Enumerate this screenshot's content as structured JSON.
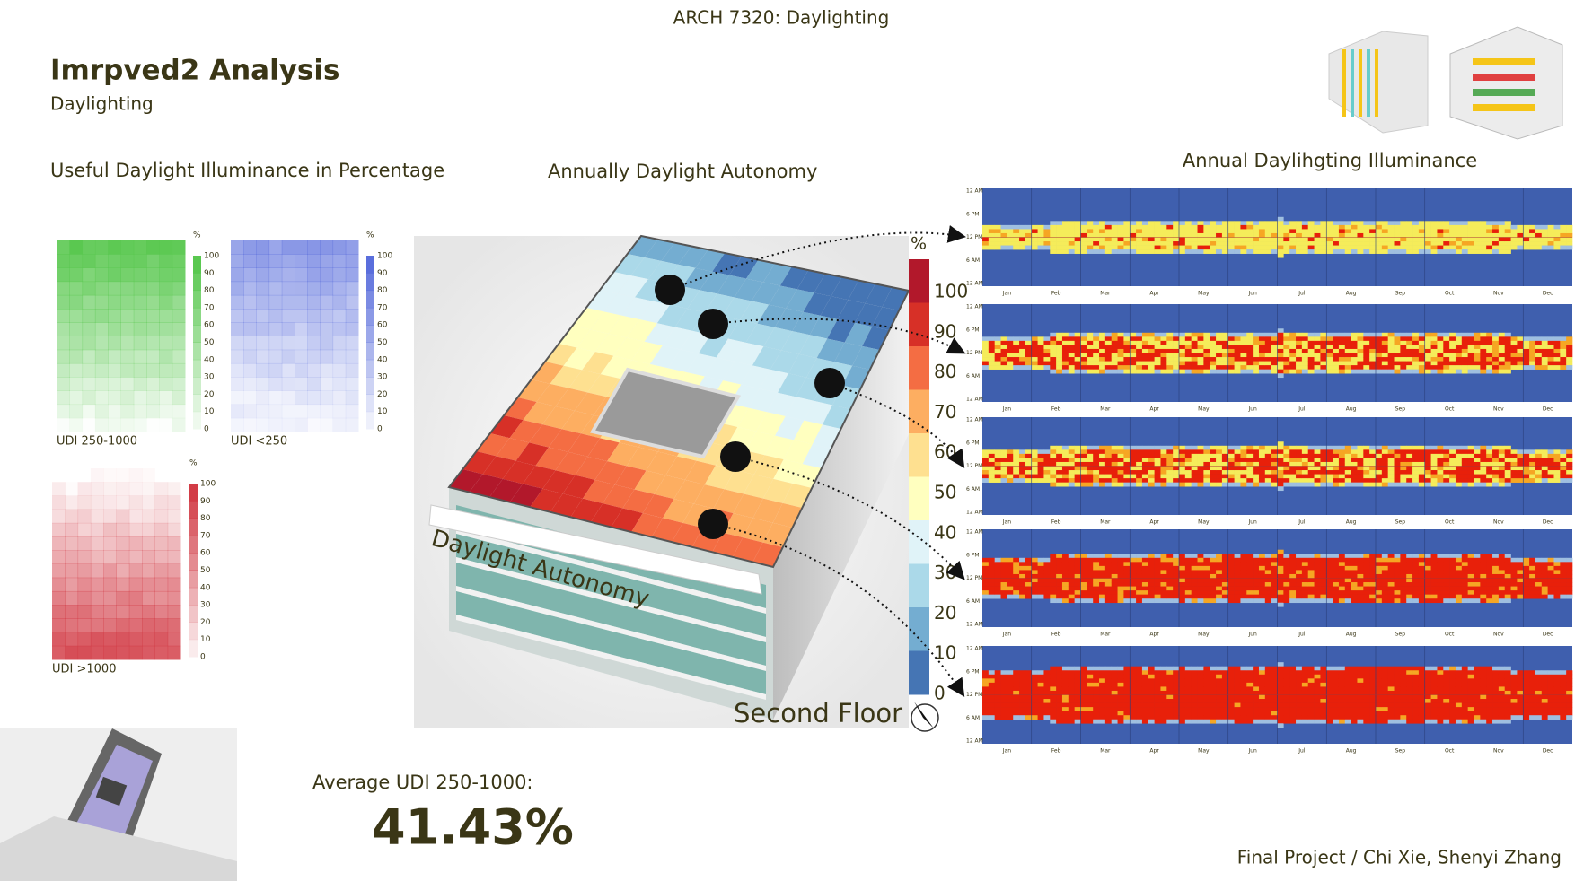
{
  "header": {
    "course": "ARCH 7320: Daylighting",
    "title": "Imrpved2 Analysis",
    "subtitle": "Daylighting"
  },
  "udi": {
    "heading": "Useful Daylight Illuminance in Percentage",
    "unit": "%",
    "ticks": [
      100,
      90,
      80,
      70,
      60,
      50,
      40,
      30,
      20,
      10,
      0
    ],
    "panels": [
      {
        "label": "UDI 250-1000"
      },
      {
        "label": "UDI <250"
      },
      {
        "label": "UDI >1000"
      }
    ]
  },
  "autonomy": {
    "heading": "Annually Daylight Autonomy",
    "unit": "%",
    "scale": [
      100,
      90,
      80,
      70,
      60,
      50,
      40,
      30,
      20,
      10,
      0
    ],
    "surface_label": "Daylight Autonomy",
    "floor": "Second Floor"
  },
  "illuminance": {
    "heading": "Annual Daylihgting Illuminance",
    "months": [
      "Jan",
      "Feb",
      "Mar",
      "Apr",
      "May",
      "Jun",
      "Jul",
      "Aug",
      "Sep",
      "Oct",
      "Nov",
      "Dec"
    ],
    "hours": [
      "12 AM",
      "6 PM",
      "12 PM",
      "6 AM",
      "12 AM"
    ]
  },
  "summary": {
    "label": "Average UDI 250-1000:",
    "value": "41.43%"
  },
  "footer": "Final Project / Chi Xie, Shenyi Zhang"
}
